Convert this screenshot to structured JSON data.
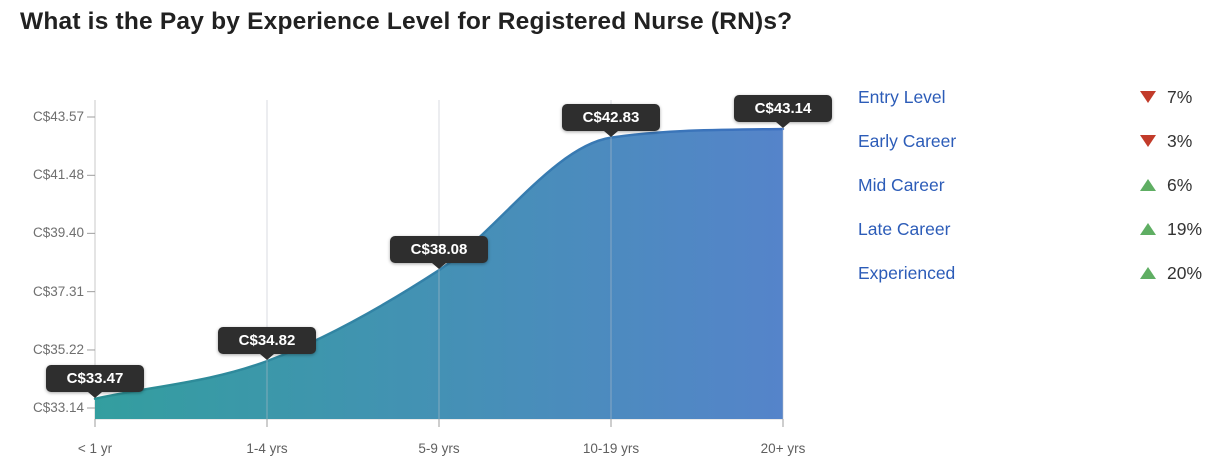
{
  "title": "What is the Pay by Experience Level for Registered Nurse (RN)s?",
  "chart_data": {
    "type": "area",
    "title": "Pay by Experience Level for Registered Nurse (RN)s",
    "x": [
      "< 1 yr",
      "1-4 yrs",
      "5-9 yrs",
      "10-19 yrs",
      "20+ yrs"
    ],
    "values": [
      33.47,
      34.82,
      38.08,
      42.83,
      43.14
    ],
    "value_labels": [
      "C$33.47",
      "C$34.82",
      "C$38.08",
      "C$42.83",
      "C$43.14"
    ],
    "currency": "C$",
    "y_ticks": [
      33.14,
      35.22,
      37.31,
      39.4,
      41.48,
      43.57
    ],
    "y_tick_labels": [
      "C$33.14",
      "C$35.22",
      "C$37.31",
      "C$39.40",
      "C$41.48",
      "C$43.57"
    ],
    "ylim": [
      33.14,
      43.57
    ],
    "grid": "vertical",
    "legend_position": "right",
    "fill_gradient": [
      "#339e9f",
      "#5584ca"
    ],
    "line_gradient": [
      "#2b9093",
      "#3d70c0"
    ]
  },
  "legend": {
    "label_color": "#2c5cb8",
    "up_color": "#5fae63",
    "down_color": "#c23b2a",
    "items": [
      {
        "label": "Entry Level",
        "direction": "down",
        "pct": "7%"
      },
      {
        "label": "Early Career",
        "direction": "down",
        "pct": "3%"
      },
      {
        "label": "Mid Career",
        "direction": "up",
        "pct": "6%"
      },
      {
        "label": "Late Career",
        "direction": "up",
        "pct": "19%"
      },
      {
        "label": "Experienced",
        "direction": "up",
        "pct": "20%"
      }
    ]
  }
}
